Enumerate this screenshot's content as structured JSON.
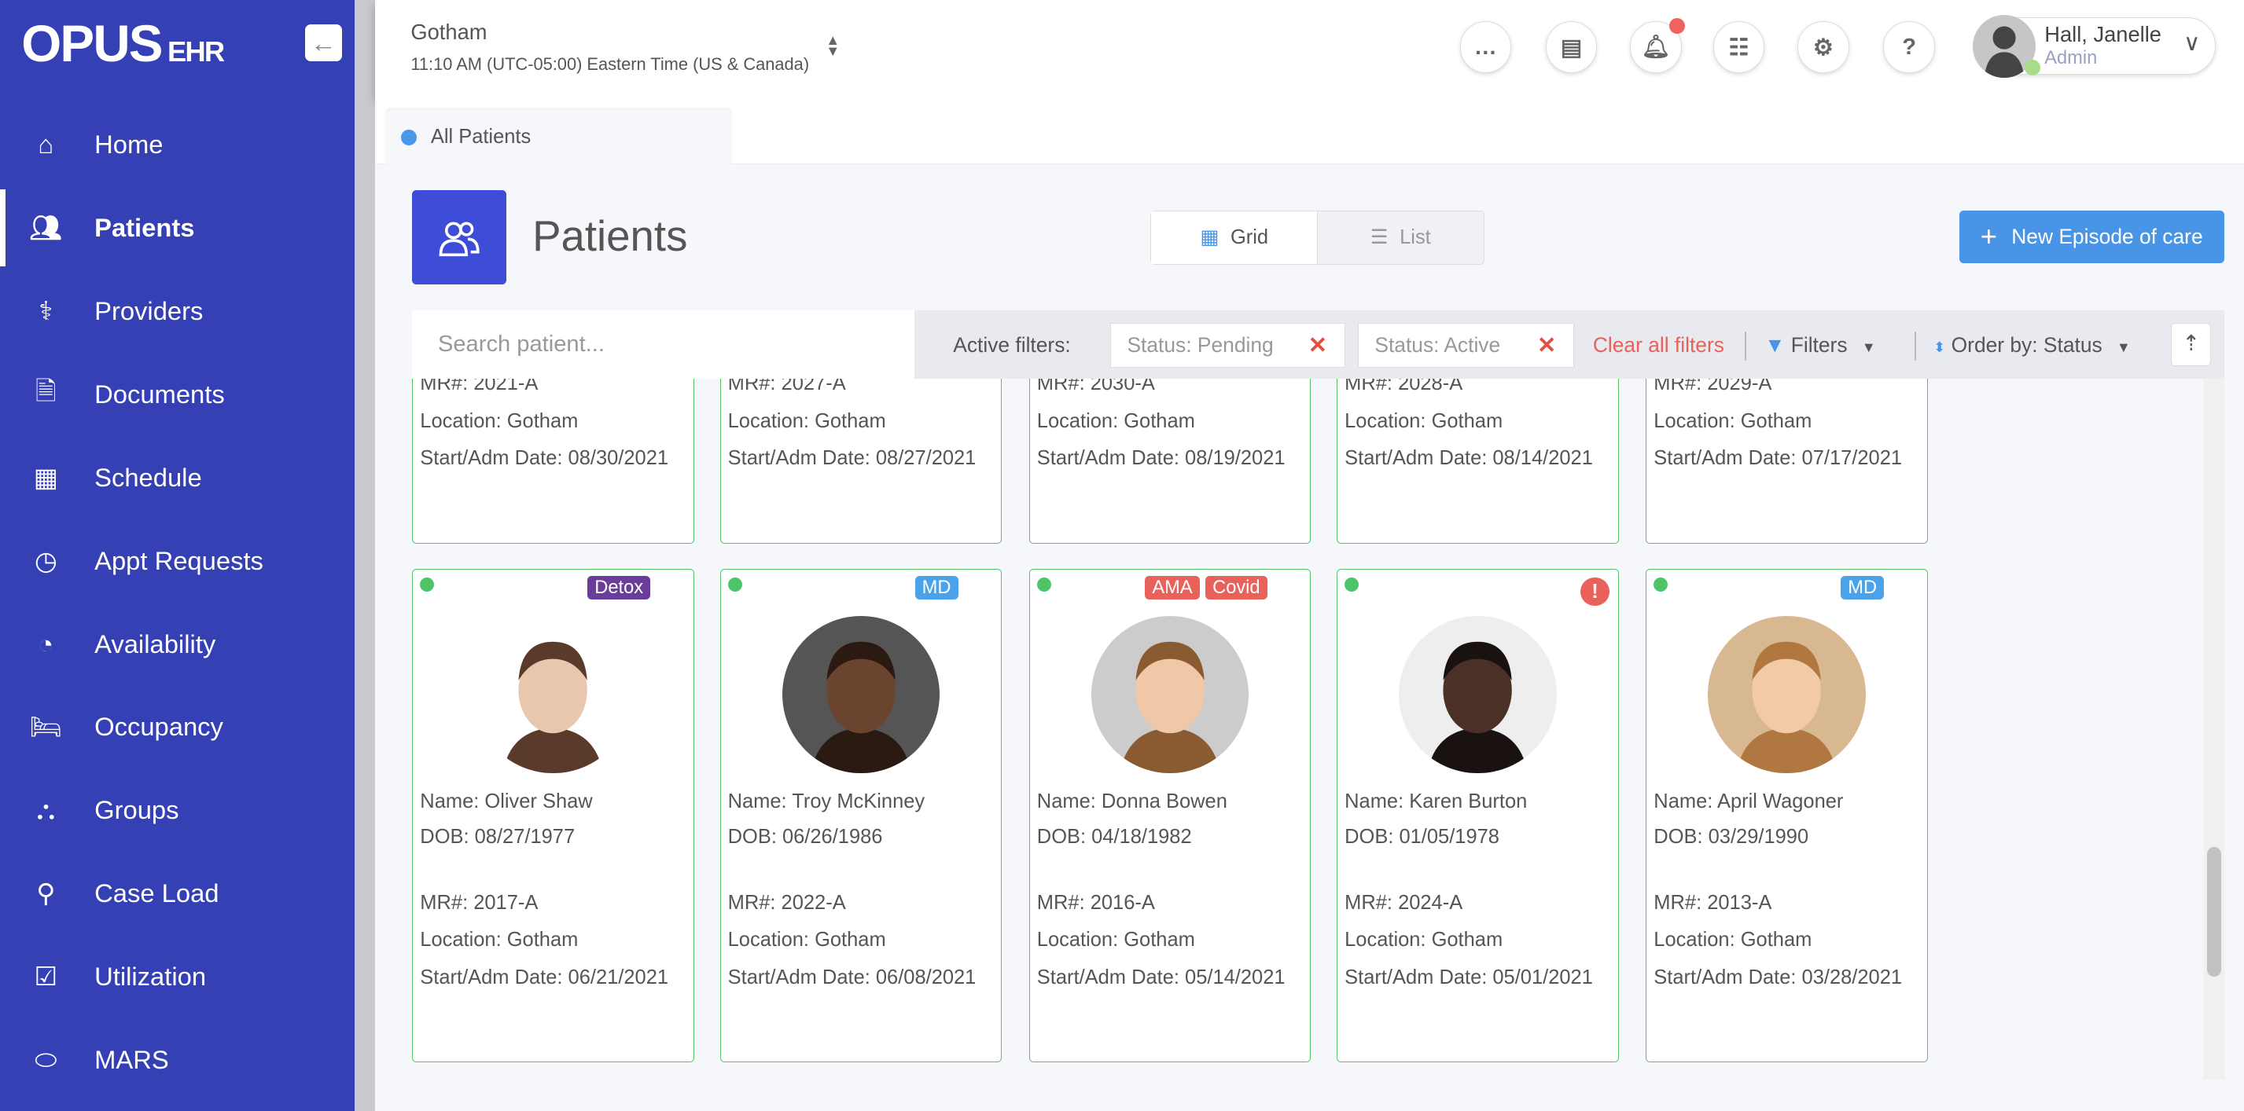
{
  "sidebar": {
    "logo": "OPUS",
    "logo_suffix": "EHR",
    "items": [
      {
        "label": "Home",
        "icon": "home-icon"
      },
      {
        "label": "Patients",
        "icon": "users-icon"
      },
      {
        "label": "Providers",
        "icon": "provider-icon"
      },
      {
        "label": "Documents",
        "icon": "documents-icon"
      },
      {
        "label": "Schedule",
        "icon": "calendar-icon"
      },
      {
        "label": "Appt Requests",
        "icon": "clock-icon"
      },
      {
        "label": "Availability",
        "icon": "availability-icon"
      },
      {
        "label": "Occupancy",
        "icon": "bed-icon"
      },
      {
        "label": "Groups",
        "icon": "groups-icon"
      },
      {
        "label": "Case Load",
        "icon": "caseload-icon"
      },
      {
        "label": "Utilization",
        "icon": "clipboard-check-icon"
      },
      {
        "label": "MARS",
        "icon": "pills-icon"
      }
    ]
  },
  "header": {
    "location": "Gotham",
    "timezone": "11:10 AM (UTC-05:00) Eastern Time (US & Canada)",
    "user_name": "Hall, Janelle",
    "user_role": "Admin"
  },
  "tabs": [
    {
      "label": "All Patients"
    }
  ],
  "page": {
    "title": "Patients",
    "view_grid": "Grid",
    "view_list": "List",
    "new_button": "New Episode of care"
  },
  "filters": {
    "search_placeholder": "Search patient...",
    "active_label": "Active filters:",
    "chips": [
      "Status: Pending",
      "Status: Active"
    ],
    "clear": "Clear all filters",
    "filters": "Filters",
    "order": "Order by: Status"
  },
  "top_cards": [
    {
      "mr": "MR#: 2021-A",
      "location": "Location: Gotham",
      "date": "Start/Adm Date: 08/30/2021"
    },
    {
      "mr": "MR#: 2027-A",
      "location": "Location: Gotham",
      "date": "Start/Adm Date: 08/27/2021"
    },
    {
      "mr": "MR#: 2030-A",
      "location": "Location: Gotham",
      "date": "Start/Adm Date: 08/19/2021"
    },
    {
      "mr": "MR#: 2028-A",
      "location": "Location: Gotham",
      "date": "Start/Adm Date: 08/14/2021"
    },
    {
      "mr": "MR#: 2029-A",
      "location": "Location: Gotham",
      "date": "Start/Adm Date: 07/17/2021"
    }
  ],
  "cards": [
    {
      "name": "Name: Oliver Shaw",
      "dob": "DOB: 08/27/1977",
      "mr": "MR#: 2017-A",
      "location": "Location: Gotham",
      "date": "Start/Adm Date: 06/21/2021",
      "tags": [
        {
          "text": "Detox",
          "color": "#6a3d9a"
        }
      ]
    },
    {
      "name": "Name: Troy McKinney",
      "dob": "DOB: 06/26/1986",
      "mr": "MR#: 2022-A",
      "location": "Location: Gotham",
      "date": "Start/Adm Date: 06/08/2021",
      "tags": [
        {
          "text": "MD",
          "color": "#4aa3ea"
        }
      ]
    },
    {
      "name": "Name: Donna Bowen",
      "dob": "DOB: 04/18/1982",
      "mr": "MR#: 2016-A",
      "location": "Location: Gotham",
      "date": "Start/Adm Date: 05/14/2021",
      "tags": [
        {
          "text": "AMA",
          "color": "#e8625b"
        },
        {
          "text": "Covid",
          "color": "#e8625b"
        }
      ]
    },
    {
      "name": "Name: Karen Burton",
      "dob": "DOB: 01/05/1978",
      "mr": "MR#: 2024-A",
      "location": "Location: Gotham",
      "date": "Start/Adm Date: 05/01/2021",
      "tags": [],
      "alert": "!"
    },
    {
      "name": "Name: April Wagoner",
      "dob": "DOB: 03/29/1990",
      "mr": "MR#: 2013-A",
      "location": "Location: Gotham",
      "date": "Start/Adm Date: 03/28/2021",
      "tags": [
        {
          "text": "MD",
          "color": "#4aa3ea"
        }
      ]
    }
  ]
}
